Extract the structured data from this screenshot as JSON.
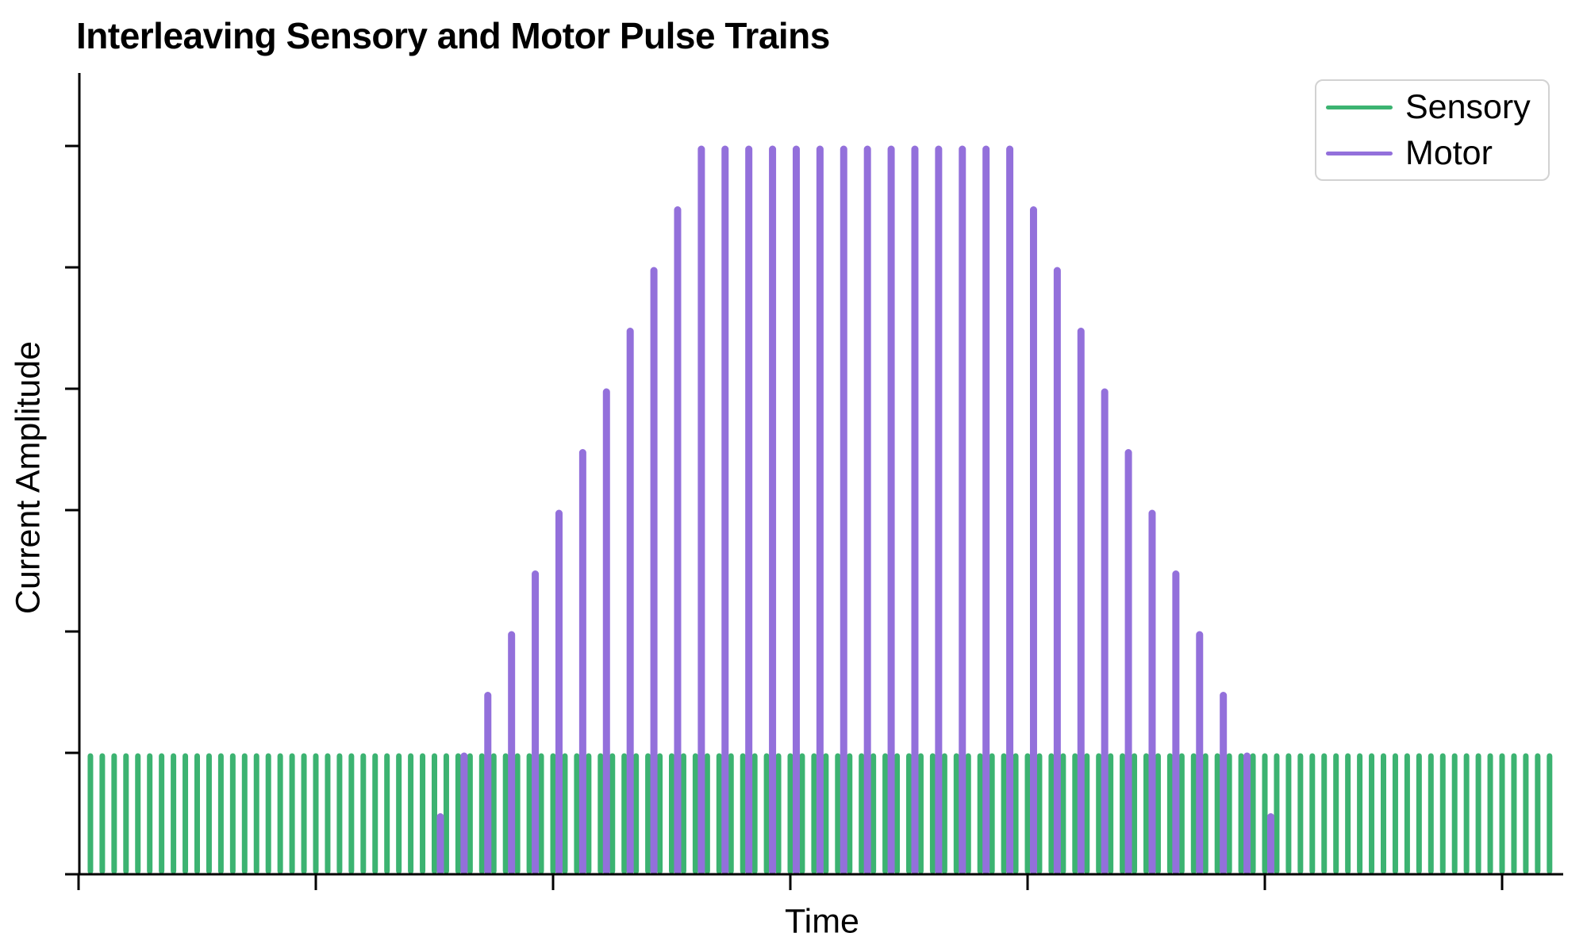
{
  "figure": {
    "background_color": "#ffffff",
    "axis_color": "#000000"
  },
  "legend": {
    "entries": [
      {
        "label": "Sensory",
        "color": "#3CB371"
      },
      {
        "label": "Motor",
        "color": "#9370DB"
      }
    ],
    "position": "upper right",
    "border_color": "#d2d2d2"
  },
  "chart_data": {
    "type": "pulse-train",
    "title": "Interleaving Sensory and Motor Pulse Trains",
    "xlabel": "Time",
    "ylabel": "Current Amplitude",
    "x_range": [
      -0.04,
      6.26
    ],
    "y_range": [
      0,
      6.6
    ],
    "x_ticks": [
      0,
      1,
      2,
      3,
      4,
      5,
      6
    ],
    "y_ticks": [
      0,
      1,
      2,
      3,
      4,
      5,
      6
    ],
    "tick_labels_shown": false,
    "grid": false,
    "series": [
      {
        "name": "Sensory",
        "color": "#3CB371",
        "line_width": 7,
        "pulse_period": 0.05,
        "t_start": 0.05,
        "t_end": 6.2,
        "num_pulses": 124,
        "amplitude": 1.0
      },
      {
        "name": "Motor",
        "color": "#9370DB",
        "line_width": 9,
        "pulse_period": 0.1,
        "t_start": 1.525,
        "t_end": 5.025,
        "num_pulses": 36,
        "amplitudes": [
          0.5,
          1.0,
          1.5,
          2.0,
          2.5,
          3.0,
          3.5,
          4.0,
          4.5,
          5.0,
          5.5,
          6.0,
          6.0,
          6.0,
          6.0,
          6.0,
          6.0,
          6.0,
          6.0,
          6.0,
          6.0,
          6.0,
          6.0,
          6.0,
          6.0,
          5.5,
          5.0,
          4.5,
          4.0,
          3.5,
          3.0,
          2.5,
          2.0,
          1.5,
          1.0,
          0.5
        ]
      }
    ]
  }
}
